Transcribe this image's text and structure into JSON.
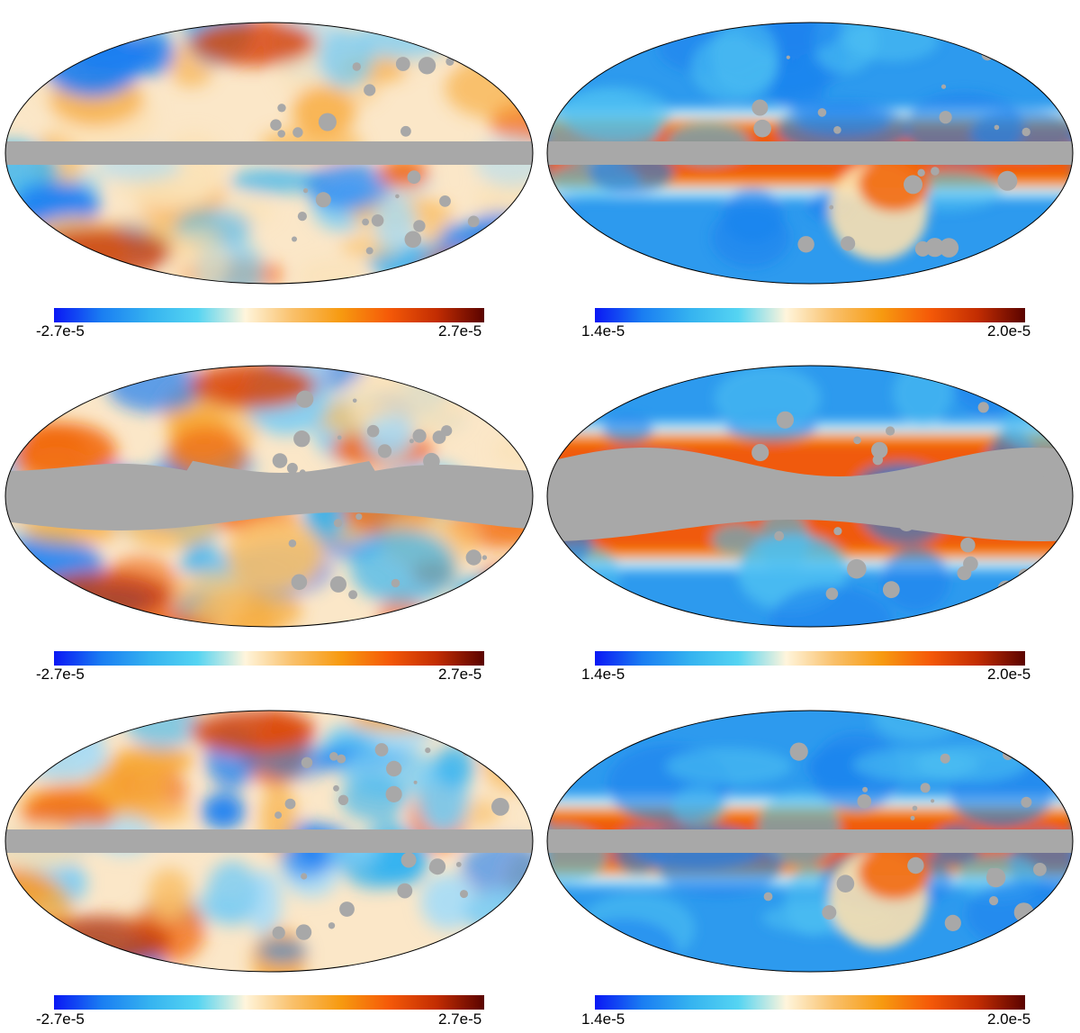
{
  "colors": {
    "mask": "#a8a8a8",
    "outline": "#000000",
    "background": "#ffffff"
  },
  "colormap": [
    "#0a17f4",
    "#1a7ef2",
    "#35b3f0",
    "#55d4f2",
    "#fff5dc",
    "#f9c06a",
    "#f79a10",
    "#f55a08",
    "#c32d02",
    "#5a0300"
  ],
  "panels": [
    {
      "row": 0,
      "col": 0,
      "kind": "residual-map",
      "colorbar": {
        "min_label": "-2.7e-5",
        "max_label": "2.7e-5"
      }
    },
    {
      "row": 0,
      "col": 1,
      "kind": "noise-map",
      "colorbar": {
        "min_label": "1.4e-5",
        "max_label": "2.0e-5"
      }
    },
    {
      "row": 1,
      "col": 0,
      "kind": "residual-map",
      "colorbar": {
        "min_label": "-2.7e-5",
        "max_label": "2.7e-5"
      }
    },
    {
      "row": 1,
      "col": 1,
      "kind": "noise-map",
      "colorbar": {
        "min_label": "1.4e-5",
        "max_label": "2.0e-5"
      }
    },
    {
      "row": 2,
      "col": 0,
      "kind": "residual-map",
      "colorbar": {
        "min_label": "-2.7e-5",
        "max_label": "2.7e-5"
      }
    },
    {
      "row": 2,
      "col": 1,
      "kind": "noise-map",
      "colorbar": {
        "min_label": "1.4e-5",
        "max_label": "2.0e-5"
      }
    }
  ]
}
